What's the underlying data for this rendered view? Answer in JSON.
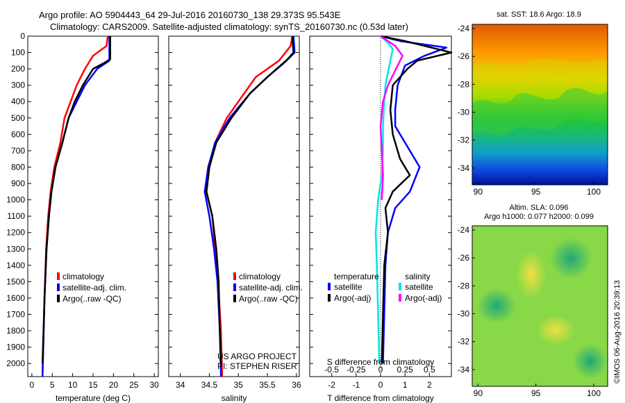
{
  "header": {
    "line1": "Argo profile: AO 5904443_64 29-Jul-2016 20160730_138 29.373S 95.543E",
    "line2": "Climatology: CARS2009. Satellite-adjusted climatology: synTS_20160730.nc (0.53d later)"
  },
  "colors": {
    "climatology": "#ff0000",
    "satellite": "#0000ff",
    "argo": "#000000",
    "sal_satellite": "#00e5e5",
    "sal_argo": "#ff00ff"
  },
  "chart_data": [
    {
      "type": "line",
      "xlabel": "temperature (deg C)",
      "ylabel": "",
      "xlim": [
        -1,
        31
      ],
      "ylim": [
        2080,
        0
      ],
      "xticks": [
        "0",
        "5",
        "10",
        "15",
        "20",
        "25",
        "30"
      ],
      "yticks": [
        "0",
        "100",
        "200",
        "300",
        "400",
        "500",
        "600",
        "700",
        "800",
        "900",
        "1000",
        "1100",
        "1200",
        "1300",
        "1400",
        "1500",
        "1600",
        "1700",
        "1800",
        "1900",
        "2000"
      ],
      "legend": [
        "climatology",
        "satellite-adj. clim.",
        "Argo(..raw -QC)"
      ],
      "series": [
        {
          "name": "climatology",
          "color": "#ff0000",
          "x": [
            18.6,
            18.3,
            15,
            13,
            11,
            9.5,
            8,
            7,
            5.5,
            4.6,
            4,
            3.5,
            3.1,
            2.6
          ],
          "y": [
            0,
            60,
            120,
            200,
            300,
            400,
            500,
            650,
            800,
            950,
            1100,
            1300,
            1600,
            2080
          ]
        },
        {
          "name": "satellite-adj. clim.",
          "color": "#0000ff",
          "x": [
            19,
            19,
            19,
            16,
            13,
            11,
            9,
            7.5,
            5.8,
            4.8,
            4.2,
            3.6,
            3.1,
            2.6
          ],
          "y": [
            0,
            60,
            150,
            200,
            300,
            400,
            500,
            650,
            800,
            950,
            1100,
            1300,
            1600,
            2080
          ]
        },
        {
          "name": "Argo(..raw -QC)",
          "color": "#000000",
          "x": [
            19.2,
            19.2,
            18,
            15,
            12.5,
            10.5,
            9,
            7.5,
            5.8,
            4.8,
            4.2,
            3.6,
            3.1,
            2.6
          ],
          "y": [
            0,
            140,
            160,
            200,
            300,
            400,
            500,
            650,
            800,
            950,
            1100,
            1300,
            1600,
            2000
          ]
        }
      ]
    },
    {
      "type": "line",
      "xlabel": "salinity",
      "ylabel": "",
      "xlim": [
        33.8,
        36.05
      ],
      "ylim": [
        2080,
        0
      ],
      "xticks": [
        "34",
        "34.5",
        "35",
        "35.5",
        "36"
      ],
      "legend": [
        "climatology",
        "satellite-adj. clim.",
        "Argo(..raw -QC)"
      ],
      "annotation": [
        "US ARGO PROJECT",
        "PI: STEPHEN RISER"
      ],
      "series": [
        {
          "name": "climatology",
          "color": "#ff0000",
          "x": [
            35.93,
            35.9,
            35.7,
            35.3,
            35.1,
            34.8,
            34.6,
            34.5,
            34.45,
            34.55,
            34.6,
            34.65,
            34.7,
            34.72
          ],
          "y": [
            0,
            60,
            150,
            250,
            350,
            500,
            650,
            800,
            950,
            1100,
            1300,
            1500,
            1800,
            2080
          ]
        },
        {
          "name": "satellite-adj. clim.",
          "color": "#0000ff",
          "x": [
            35.95,
            35.97,
            35.8,
            35.5,
            35.2,
            34.85,
            34.6,
            34.48,
            34.42,
            34.5,
            34.58,
            34.64,
            34.68,
            34.7
          ],
          "y": [
            0,
            100,
            160,
            250,
            350,
            500,
            650,
            800,
            950,
            1100,
            1300,
            1500,
            1800,
            2080
          ]
        },
        {
          "name": "Argo(..raw -QC)",
          "color": "#000000",
          "x": [
            35.93,
            35.95,
            35.85,
            35.5,
            35.2,
            34.88,
            34.62,
            34.5,
            34.45,
            34.55,
            34.62,
            34.66,
            34.68,
            34.7
          ],
          "y": [
            0,
            100,
            140,
            250,
            350,
            500,
            650,
            800,
            950,
            1100,
            1300,
            1500,
            1800,
            2000
          ]
        }
      ]
    },
    {
      "type": "line",
      "xlabel": "T difference from climatology",
      "top_label": "S difference from climatology",
      "xlim": [
        -2.9,
        2.9
      ],
      "ylim": [
        2080,
        0
      ],
      "xticks": [
        "-2",
        "-1",
        "0",
        "1",
        "2"
      ],
      "top_ticks": [
        "-0.5",
        "-0.25",
        "0",
        "0.25",
        "0.5"
      ],
      "legend_titles": [
        "temperature",
        "salinity"
      ],
      "legend": [
        "satellite",
        "Argo(-adj)",
        "satellite",
        "Argo(-adj)"
      ],
      "series": [
        {
          "name": "satellite",
          "color": "#0000ff",
          "x": [
            0,
            0.8,
            2.7,
            1.8,
            1.0,
            0.7,
            0.6,
            0.6,
            1.0,
            1.6,
            1.2,
            0.6,
            0.3,
            0.2,
            0.15,
            0.1
          ],
          "y": [
            0,
            30,
            70,
            120,
            180,
            300,
            450,
            550,
            650,
            800,
            950,
            1050,
            1200,
            1400,
            1700,
            2000
          ]
        },
        {
          "name": "Argo(-adj)",
          "color": "#000000",
          "x": [
            0,
            1.0,
            2.9,
            1.5,
            1.1,
            0.5,
            0.4,
            0.5,
            0.8,
            1.2,
            0.5,
            0.2,
            0.3,
            0.15,
            0.1,
            0.05
          ],
          "y": [
            0,
            30,
            100,
            150,
            200,
            300,
            450,
            600,
            750,
            850,
            950,
            1050,
            1200,
            1400,
            1700,
            2000
          ]
        },
        {
          "name": "satellite (salinity)",
          "color": "#00e5e5",
          "x": [
            0,
            0.3,
            0.5,
            0.4,
            0.2,
            0.15,
            0.1,
            0.1,
            0.05,
            -0.1,
            -0.2,
            -0.15,
            -0.1,
            -0.05
          ],
          "y": [
            0,
            40,
            80,
            150,
            300,
            400,
            550,
            700,
            850,
            1000,
            1200,
            1400,
            1700,
            2000
          ]
        },
        {
          "name": "Argo(-adj) (salinity)",
          "color": "#ff00ff",
          "x": [
            0,
            0.6,
            0.9,
            0.7,
            0.3,
            0.1,
            0.0,
            0.05,
            0.1,
            0.05
          ],
          "y": [
            0,
            60,
            120,
            180,
            300,
            400,
            550,
            700,
            850,
            1000
          ]
        }
      ]
    }
  ],
  "maps": {
    "top": {
      "title": "sat. SST: 18.6 Argo: 18.9",
      "xticks": [
        "90",
        "95",
        "100"
      ],
      "yticks": [
        "-24",
        "-26",
        "-28",
        "-30",
        "-32",
        "-34"
      ]
    },
    "bottom": {
      "title1": "Altim. SLA: 0.096",
      "title2": "Argo h1000: 0.077 h2000: 0.099",
      "xticks": [
        "90",
        "95",
        "100"
      ],
      "yticks": [
        "-24",
        "-26",
        "-28",
        "-30",
        "-32",
        "-34"
      ]
    }
  },
  "footer": {
    "stamp": "©IMOS 06-Aug-2016 20:39:13"
  }
}
